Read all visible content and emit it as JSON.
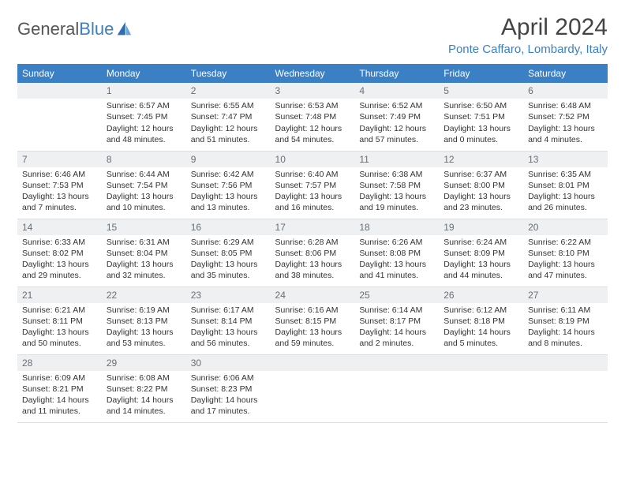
{
  "logo": {
    "word1": "General",
    "word2": "Blue"
  },
  "title": "April 2024",
  "location": "Ponte Caffaro, Lombardy, Italy",
  "colors": {
    "header_bg": "#3b7fc4",
    "header_text": "#ffffff",
    "daynum_bg": "#eef0f2",
    "daynum_text": "#6a6f75",
    "body_text": "#333333",
    "location_text": "#3b7fc4"
  },
  "weekdays": [
    "Sunday",
    "Monday",
    "Tuesday",
    "Wednesday",
    "Thursday",
    "Friday",
    "Saturday"
  ],
  "weeks": [
    [
      null,
      {
        "n": "1",
        "sunrise": "Sunrise: 6:57 AM",
        "sunset": "Sunset: 7:45 PM",
        "d1": "Daylight: 12 hours",
        "d2": "and 48 minutes."
      },
      {
        "n": "2",
        "sunrise": "Sunrise: 6:55 AM",
        "sunset": "Sunset: 7:47 PM",
        "d1": "Daylight: 12 hours",
        "d2": "and 51 minutes."
      },
      {
        "n": "3",
        "sunrise": "Sunrise: 6:53 AM",
        "sunset": "Sunset: 7:48 PM",
        "d1": "Daylight: 12 hours",
        "d2": "and 54 minutes."
      },
      {
        "n": "4",
        "sunrise": "Sunrise: 6:52 AM",
        "sunset": "Sunset: 7:49 PM",
        "d1": "Daylight: 12 hours",
        "d2": "and 57 minutes."
      },
      {
        "n": "5",
        "sunrise": "Sunrise: 6:50 AM",
        "sunset": "Sunset: 7:51 PM",
        "d1": "Daylight: 13 hours",
        "d2": "and 0 minutes."
      },
      {
        "n": "6",
        "sunrise": "Sunrise: 6:48 AM",
        "sunset": "Sunset: 7:52 PM",
        "d1": "Daylight: 13 hours",
        "d2": "and 4 minutes."
      }
    ],
    [
      {
        "n": "7",
        "sunrise": "Sunrise: 6:46 AM",
        "sunset": "Sunset: 7:53 PM",
        "d1": "Daylight: 13 hours",
        "d2": "and 7 minutes."
      },
      {
        "n": "8",
        "sunrise": "Sunrise: 6:44 AM",
        "sunset": "Sunset: 7:54 PM",
        "d1": "Daylight: 13 hours",
        "d2": "and 10 minutes."
      },
      {
        "n": "9",
        "sunrise": "Sunrise: 6:42 AM",
        "sunset": "Sunset: 7:56 PM",
        "d1": "Daylight: 13 hours",
        "d2": "and 13 minutes."
      },
      {
        "n": "10",
        "sunrise": "Sunrise: 6:40 AM",
        "sunset": "Sunset: 7:57 PM",
        "d1": "Daylight: 13 hours",
        "d2": "and 16 minutes."
      },
      {
        "n": "11",
        "sunrise": "Sunrise: 6:38 AM",
        "sunset": "Sunset: 7:58 PM",
        "d1": "Daylight: 13 hours",
        "d2": "and 19 minutes."
      },
      {
        "n": "12",
        "sunrise": "Sunrise: 6:37 AM",
        "sunset": "Sunset: 8:00 PM",
        "d1": "Daylight: 13 hours",
        "d2": "and 23 minutes."
      },
      {
        "n": "13",
        "sunrise": "Sunrise: 6:35 AM",
        "sunset": "Sunset: 8:01 PM",
        "d1": "Daylight: 13 hours",
        "d2": "and 26 minutes."
      }
    ],
    [
      {
        "n": "14",
        "sunrise": "Sunrise: 6:33 AM",
        "sunset": "Sunset: 8:02 PM",
        "d1": "Daylight: 13 hours",
        "d2": "and 29 minutes."
      },
      {
        "n": "15",
        "sunrise": "Sunrise: 6:31 AM",
        "sunset": "Sunset: 8:04 PM",
        "d1": "Daylight: 13 hours",
        "d2": "and 32 minutes."
      },
      {
        "n": "16",
        "sunrise": "Sunrise: 6:29 AM",
        "sunset": "Sunset: 8:05 PM",
        "d1": "Daylight: 13 hours",
        "d2": "and 35 minutes."
      },
      {
        "n": "17",
        "sunrise": "Sunrise: 6:28 AM",
        "sunset": "Sunset: 8:06 PM",
        "d1": "Daylight: 13 hours",
        "d2": "and 38 minutes."
      },
      {
        "n": "18",
        "sunrise": "Sunrise: 6:26 AM",
        "sunset": "Sunset: 8:08 PM",
        "d1": "Daylight: 13 hours",
        "d2": "and 41 minutes."
      },
      {
        "n": "19",
        "sunrise": "Sunrise: 6:24 AM",
        "sunset": "Sunset: 8:09 PM",
        "d1": "Daylight: 13 hours",
        "d2": "and 44 minutes."
      },
      {
        "n": "20",
        "sunrise": "Sunrise: 6:22 AM",
        "sunset": "Sunset: 8:10 PM",
        "d1": "Daylight: 13 hours",
        "d2": "and 47 minutes."
      }
    ],
    [
      {
        "n": "21",
        "sunrise": "Sunrise: 6:21 AM",
        "sunset": "Sunset: 8:11 PM",
        "d1": "Daylight: 13 hours",
        "d2": "and 50 minutes."
      },
      {
        "n": "22",
        "sunrise": "Sunrise: 6:19 AM",
        "sunset": "Sunset: 8:13 PM",
        "d1": "Daylight: 13 hours",
        "d2": "and 53 minutes."
      },
      {
        "n": "23",
        "sunrise": "Sunrise: 6:17 AM",
        "sunset": "Sunset: 8:14 PM",
        "d1": "Daylight: 13 hours",
        "d2": "and 56 minutes."
      },
      {
        "n": "24",
        "sunrise": "Sunrise: 6:16 AM",
        "sunset": "Sunset: 8:15 PM",
        "d1": "Daylight: 13 hours",
        "d2": "and 59 minutes."
      },
      {
        "n": "25",
        "sunrise": "Sunrise: 6:14 AM",
        "sunset": "Sunset: 8:17 PM",
        "d1": "Daylight: 14 hours",
        "d2": "and 2 minutes."
      },
      {
        "n": "26",
        "sunrise": "Sunrise: 6:12 AM",
        "sunset": "Sunset: 8:18 PM",
        "d1": "Daylight: 14 hours",
        "d2": "and 5 minutes."
      },
      {
        "n": "27",
        "sunrise": "Sunrise: 6:11 AM",
        "sunset": "Sunset: 8:19 PM",
        "d1": "Daylight: 14 hours",
        "d2": "and 8 minutes."
      }
    ],
    [
      {
        "n": "28",
        "sunrise": "Sunrise: 6:09 AM",
        "sunset": "Sunset: 8:21 PM",
        "d1": "Daylight: 14 hours",
        "d2": "and 11 minutes."
      },
      {
        "n": "29",
        "sunrise": "Sunrise: 6:08 AM",
        "sunset": "Sunset: 8:22 PM",
        "d1": "Daylight: 14 hours",
        "d2": "and 14 minutes."
      },
      {
        "n": "30",
        "sunrise": "Sunrise: 6:06 AM",
        "sunset": "Sunset: 8:23 PM",
        "d1": "Daylight: 14 hours",
        "d2": "and 17 minutes."
      },
      null,
      null,
      null,
      null
    ]
  ]
}
